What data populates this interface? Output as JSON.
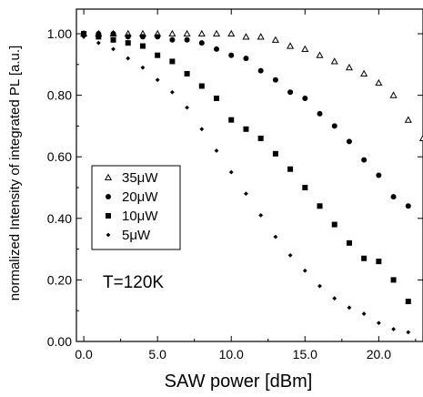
{
  "chart_data": {
    "type": "scatter",
    "xlabel": "SAW power [dBm]",
    "ylabel": "normalized Intensity of integrated PL [a.u.]",
    "xlim": [
      -0.5,
      23
    ],
    "ylim": [
      0,
      1.08
    ],
    "xticks": [
      {
        "value": 0,
        "label": "0.0"
      },
      {
        "value": 5,
        "label": "5.0"
      },
      {
        "value": 10,
        "label": "10.0"
      },
      {
        "value": 15,
        "label": "15.0"
      },
      {
        "value": 20,
        "label": "20.0"
      }
    ],
    "yticks": [
      {
        "value": 0,
        "label": "0.00"
      },
      {
        "value": 0.2,
        "label": "0.20"
      },
      {
        "value": 0.4,
        "label": "0.40"
      },
      {
        "value": 0.6,
        "label": "0.60"
      },
      {
        "value": 0.8,
        "label": "0.80"
      },
      {
        "value": 1.0,
        "label": "1.00"
      }
    ],
    "grid": false,
    "legend_position": "middle-left",
    "annotation": "T=120K",
    "series": [
      {
        "name": "35μW",
        "marker": "open-triangle",
        "points": [
          [
            0,
            1.0
          ],
          [
            1,
            1.0
          ],
          [
            2,
            1.0
          ],
          [
            3,
            1.0
          ],
          [
            4,
            1.0
          ],
          [
            5,
            1.0
          ],
          [
            6,
            1.0
          ],
          [
            7,
            1.0
          ],
          [
            8,
            1.0
          ],
          [
            9,
            1.0
          ],
          [
            10,
            1.0
          ],
          [
            11,
            0.99
          ],
          [
            12,
            0.99
          ],
          [
            13,
            0.98
          ],
          [
            14,
            0.96
          ],
          [
            15,
            0.95
          ],
          [
            16,
            0.93
          ],
          [
            17,
            0.91
          ],
          [
            18,
            0.89
          ],
          [
            19,
            0.87
          ],
          [
            20,
            0.84
          ],
          [
            21,
            0.8
          ],
          [
            22,
            0.72
          ],
          [
            23,
            0.66
          ]
        ]
      },
      {
        "name": "20μW",
        "marker": "circle",
        "points": [
          [
            0,
            1.0
          ],
          [
            1,
            1.0
          ],
          [
            2,
            1.0
          ],
          [
            3,
            0.99
          ],
          [
            4,
            0.99
          ],
          [
            5,
            0.99
          ],
          [
            6,
            0.98
          ],
          [
            7,
            0.98
          ],
          [
            8,
            0.97
          ],
          [
            9,
            0.95
          ],
          [
            10,
            0.93
          ],
          [
            11,
            0.92
          ],
          [
            12,
            0.88
          ],
          [
            13,
            0.85
          ],
          [
            14,
            0.81
          ],
          [
            15,
            0.79
          ],
          [
            16,
            0.74
          ],
          [
            17,
            0.7
          ],
          [
            18,
            0.65
          ],
          [
            19,
            0.59
          ],
          [
            20,
            0.54
          ],
          [
            21,
            0.47
          ],
          [
            22,
            0.44
          ]
        ]
      },
      {
        "name": "10μW",
        "marker": "square",
        "points": [
          [
            0,
            1.0
          ],
          [
            1,
            0.99
          ],
          [
            2,
            0.98
          ],
          [
            3,
            0.97
          ],
          [
            4,
            0.96
          ],
          [
            5,
            0.93
          ],
          [
            6,
            0.91
          ],
          [
            7,
            0.87
          ],
          [
            8,
            0.83
          ],
          [
            9,
            0.79
          ],
          [
            10,
            0.72
          ],
          [
            11,
            0.69
          ],
          [
            12,
            0.66
          ],
          [
            13,
            0.61
          ],
          [
            14,
            0.56
          ],
          [
            15,
            0.5
          ],
          [
            16,
            0.44
          ],
          [
            17,
            0.38
          ],
          [
            18,
            0.32
          ],
          [
            19,
            0.27
          ],
          [
            20,
            0.26
          ],
          [
            21,
            0.2
          ],
          [
            22,
            0.13
          ]
        ]
      },
      {
        "name": "5μW",
        "marker": "diamond",
        "points": [
          [
            0,
            0.99
          ],
          [
            1,
            0.97
          ],
          [
            2,
            0.95
          ],
          [
            3,
            0.92
          ],
          [
            4,
            0.89
          ],
          [
            5,
            0.85
          ],
          [
            6,
            0.81
          ],
          [
            7,
            0.76
          ],
          [
            8,
            0.69
          ],
          [
            9,
            0.62
          ],
          [
            10,
            0.55
          ],
          [
            11,
            0.48
          ],
          [
            12,
            0.41
          ],
          [
            13,
            0.34
          ],
          [
            14,
            0.28
          ],
          [
            15,
            0.23
          ],
          [
            16,
            0.18
          ],
          [
            17,
            0.14
          ],
          [
            18,
            0.11
          ],
          [
            19,
            0.09
          ],
          [
            20,
            0.06
          ],
          [
            21,
            0.04
          ],
          [
            22,
            0.03
          ]
        ]
      }
    ]
  }
}
